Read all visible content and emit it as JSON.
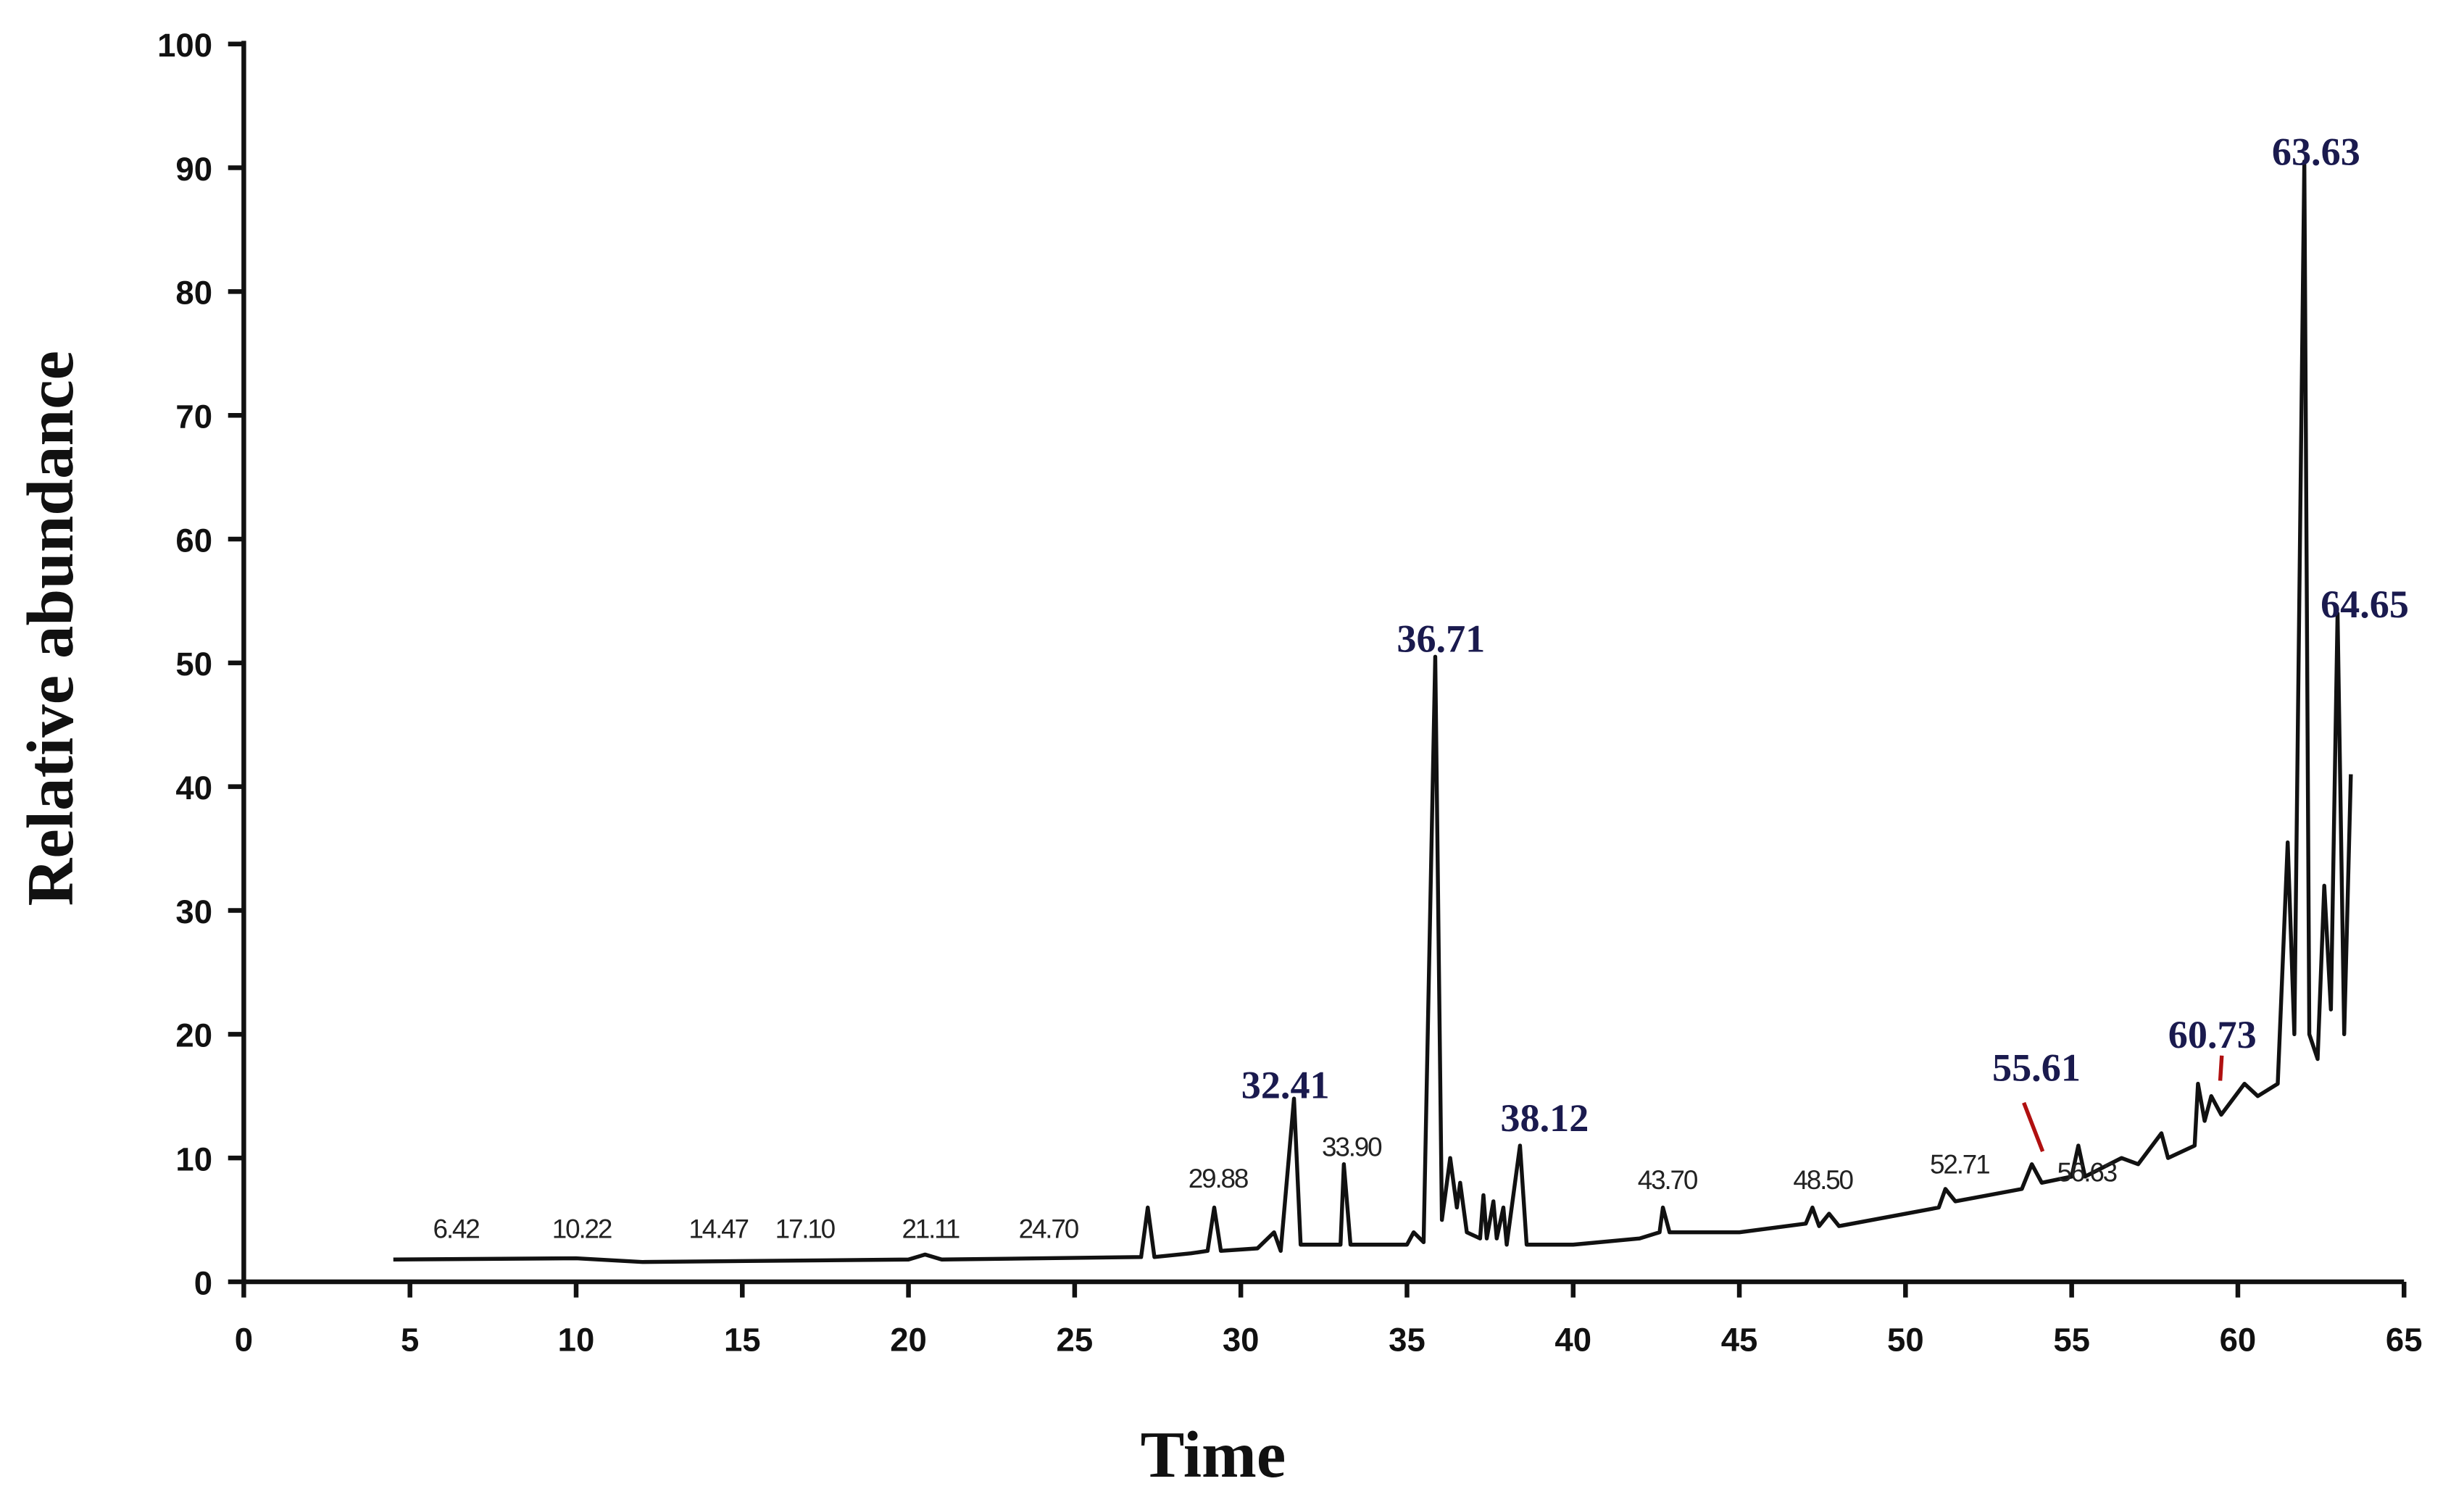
{
  "chart_data": {
    "type": "line",
    "xlabel": "Time",
    "ylabel": "Relative abundance",
    "xlim": [
      0,
      65
    ],
    "ylim": [
      0,
      100
    ],
    "xticks": [
      0,
      5,
      10,
      15,
      20,
      25,
      30,
      35,
      40,
      45,
      50,
      55,
      60,
      65
    ],
    "yticks": [
      0,
      10,
      20,
      30,
      40,
      50,
      60,
      70,
      80,
      90,
      100
    ],
    "color": "#111111",
    "x": [
      4.5,
      10,
      12,
      20,
      20.5,
      21,
      27,
      27.2,
      27.4,
      28.5,
      29,
      29.2,
      29.4,
      30.5,
      31,
      31.2,
      31.6,
      31.8,
      33,
      33.1,
      33.3,
      35,
      35.2,
      35.5,
      35.85,
      36.05,
      36.3,
      36.5,
      36.6,
      36.8,
      37.2,
      37.3,
      37.4,
      37.6,
      37.7,
      37.9,
      38,
      38.4,
      38.6,
      40,
      42,
      42.6,
      42.7,
      42.9,
      45,
      47,
      47.2,
      47.4,
      47.7,
      48,
      50,
      51,
      51.2,
      51.5,
      53.5,
      53.8,
      54.1,
      55,
      55.2,
      55.4,
      56.5,
      57,
      57.7,
      57.9,
      58.7,
      58.8,
      59,
      59.2,
      59.5,
      60.2,
      60.6,
      61.2,
      61.5,
      61.7,
      62,
      62.15,
      62.4,
      62.6,
      62.8,
      63,
      63.2,
      63.4
    ],
    "values": [
      1.8,
      1.9,
      1.6,
      1.8,
      2.2,
      1.8,
      2,
      6,
      2,
      2.3,
      2.5,
      6,
      2.5,
      2.7,
      4,
      2.5,
      14.8,
      3,
      3,
      9.5,
      3,
      3,
      4,
      3.2,
      50.5,
      5,
      10,
      6,
      8,
      4,
      3.5,
      7,
      3.5,
      6.5,
      3.5,
      6,
      3,
      11,
      3,
      3,
      3.5,
      4,
      6,
      4,
      4,
      4.7,
      6,
      4.5,
      5.5,
      4.5,
      5.5,
      6,
      7.5,
      6.5,
      7.5,
      9.5,
      8,
      8.5,
      11,
      8.5,
      10,
      9.5,
      12,
      10,
      11,
      16,
      13,
      15,
      13.5,
      16,
      15,
      16,
      35.5,
      20,
      90.5,
      20,
      18,
      32,
      22,
      54,
      20,
      41
    ],
    "annotations": [
      "6.42",
      "10.22",
      "14.47",
      "17.10",
      "21.11",
      "24.70",
      "29.88",
      "32.41",
      "33.90",
      "36.71",
      "38.12",
      "43.70",
      "48.50",
      "52.71",
      "55.61",
      "56.63",
      "60.73",
      "63.63",
      "64.65"
    ]
  }
}
